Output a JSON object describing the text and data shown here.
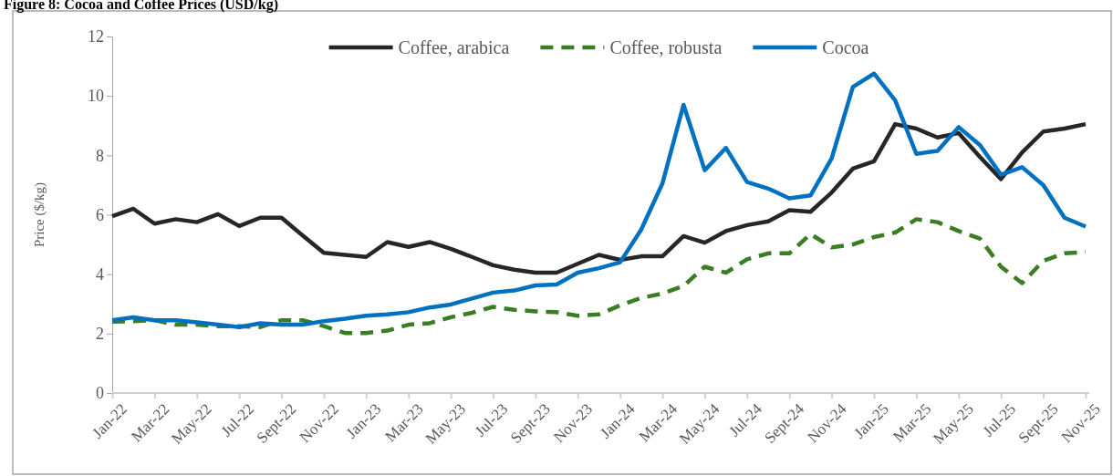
{
  "chart_data": {
    "type": "line",
    "title": "Figure 8: Cocoa and Coffee Prices (USD/kg)",
    "ylabel": "Price ($/kg)",
    "categories": [
      "Jan-22",
      null,
      "Mar-22",
      null,
      "May-22",
      null,
      "Jul-22",
      null,
      "Sept-22",
      null,
      "Nov-22",
      null,
      "Jan-23",
      null,
      "Mar-23",
      null,
      "May-23",
      null,
      "Jul-23",
      null,
      "Sept-23",
      null,
      "Nov-23",
      null,
      "Jan-24",
      null,
      "Mar-24",
      null,
      "May-24",
      null,
      "Jul-24",
      null,
      "Sept-24",
      null,
      "Nov-24",
      null,
      "Jan-25",
      null,
      "Mar-25",
      null,
      "May-25",
      null,
      "Jul-25",
      null,
      "Sept-25",
      null,
      "Nov-25"
    ],
    "ylim": [
      0,
      12
    ],
    "yticks": [
      0,
      2,
      4,
      6,
      8,
      10,
      12
    ],
    "grid": false,
    "legend": "top",
    "marker": "none",
    "series": [
      {
        "name": "Coffee, arabica",
        "color": "#262626",
        "line_style": "solid",
        "values": [
          5.95,
          6.2,
          5.7,
          5.85,
          5.75,
          6.02,
          5.62,
          5.9,
          5.9,
          5.3,
          4.72,
          4.65,
          4.58,
          5.08,
          4.92,
          5.08,
          4.85,
          4.58,
          4.3,
          4.15,
          4.05,
          4.05,
          4.35,
          4.65,
          4.48,
          4.6,
          4.6,
          5.28,
          5.06,
          5.45,
          5.65,
          5.78,
          6.15,
          6.1,
          6.75,
          7.55,
          7.8,
          9.05,
          8.9,
          8.6,
          8.75,
          7.95,
          7.2,
          8.1,
          8.8,
          8.9,
          9.05
        ]
      },
      {
        "name": "Coffee, robusta",
        "color": "#3a7d22",
        "line_style": "dashed",
        "values": [
          2.4,
          2.42,
          2.45,
          2.3,
          2.3,
          2.25,
          2.25,
          2.22,
          2.45,
          2.45,
          2.25,
          2.02,
          2.02,
          2.1,
          2.3,
          2.35,
          2.55,
          2.7,
          2.9,
          2.8,
          2.75,
          2.72,
          2.6,
          2.65,
          2.95,
          3.2,
          3.35,
          3.6,
          4.25,
          4.05,
          4.5,
          4.7,
          4.7,
          5.35,
          4.9,
          5.0,
          5.25,
          5.4,
          5.85,
          5.75,
          5.45,
          5.2,
          4.25,
          3.7,
          4.45,
          4.7,
          4.75
        ]
      },
      {
        "name": "Cocoa",
        "color": "#0070c0",
        "line_style": "solid",
        "values": [
          2.45,
          2.55,
          2.45,
          2.45,
          2.38,
          2.3,
          2.22,
          2.35,
          2.3,
          2.3,
          2.42,
          2.5,
          2.6,
          2.65,
          2.72,
          2.88,
          2.98,
          3.18,
          3.38,
          3.45,
          3.62,
          3.65,
          4.05,
          4.2,
          4.4,
          5.5,
          7.05,
          9.7,
          7.5,
          8.25,
          7.1,
          6.88,
          6.55,
          6.65,
          7.9,
          10.3,
          10.75,
          9.85,
          8.05,
          8.15,
          8.95,
          8.35,
          7.35,
          7.6,
          7.0,
          5.9,
          5.6
        ]
      }
    ]
  }
}
